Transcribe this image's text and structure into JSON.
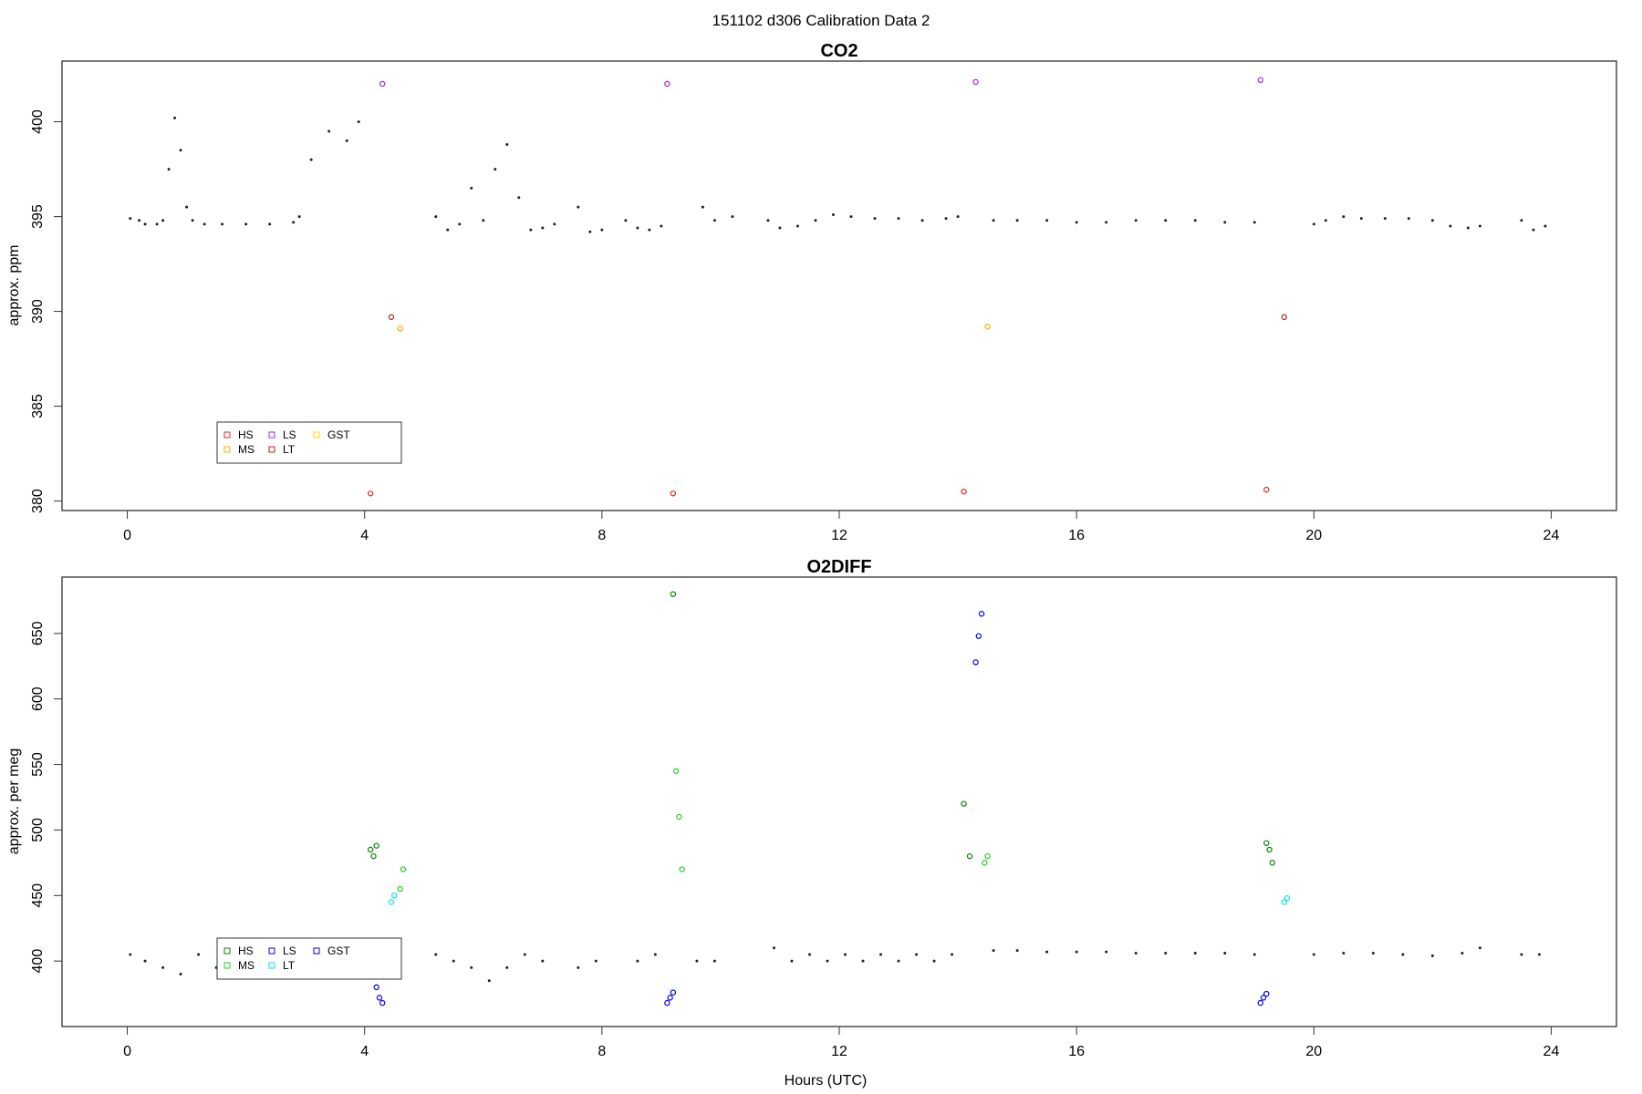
{
  "figure": {
    "suptitle": "151102   d306   Calibration Data 2",
    "xlabel": "Hours (UTC)"
  },
  "chart_data": [
    {
      "type": "scatter",
      "title": "CO2",
      "xlabel": "",
      "ylabel": "approx. ppm",
      "xlim": [
        -1.1,
        25.1
      ],
      "ylim": [
        379.5,
        403.2
      ],
      "xticks": [
        0,
        4,
        8,
        12,
        16,
        20,
        24
      ],
      "yticks": [
        380,
        385,
        390,
        395,
        400
      ],
      "grid": false,
      "legend_position": "bottom-left",
      "legend": [
        {
          "label": "HS",
          "color": "#ee2222"
        },
        {
          "label": "MS",
          "color": "#ffa500"
        },
        {
          "label": "LS",
          "color": "#a020f0"
        },
        {
          "label": "LT",
          "color": "#b22222"
        },
        {
          "label": "GST",
          "color": "#ffd700"
        }
      ],
      "ambient_baseline": [
        [
          0.05,
          394.9
        ],
        [
          0.2,
          394.8
        ],
        [
          0.3,
          394.6
        ],
        [
          0.5,
          394.6
        ],
        [
          0.6,
          394.8
        ],
        [
          0.7,
          397.5
        ],
        [
          0.8,
          400.2
        ],
        [
          0.9,
          398.5
        ],
        [
          1.0,
          395.5
        ],
        [
          1.1,
          394.8
        ],
        [
          1.3,
          394.6
        ],
        [
          1.6,
          394.6
        ],
        [
          2.0,
          394.6
        ],
        [
          2.4,
          394.6
        ],
        [
          2.8,
          394.7
        ],
        [
          2.9,
          395.0
        ],
        [
          3.1,
          398.0
        ],
        [
          3.4,
          399.5
        ],
        [
          3.7,
          399.0
        ],
        [
          3.9,
          400.0
        ],
        [
          5.2,
          395.0
        ],
        [
          5.4,
          394.3
        ],
        [
          5.6,
          394.6
        ],
        [
          5.8,
          396.5
        ],
        [
          6.0,
          394.8
        ],
        [
          6.2,
          397.5
        ],
        [
          6.4,
          398.8
        ],
        [
          6.6,
          396.0
        ],
        [
          6.8,
          394.3
        ],
        [
          7.0,
          394.4
        ],
        [
          7.2,
          394.6
        ],
        [
          7.6,
          395.5
        ],
        [
          7.8,
          394.2
        ],
        [
          8.0,
          394.3
        ],
        [
          8.4,
          394.8
        ],
        [
          8.6,
          394.4
        ],
        [
          8.8,
          394.3
        ],
        [
          9.0,
          394.5
        ],
        [
          9.7,
          395.5
        ],
        [
          9.9,
          394.8
        ],
        [
          10.2,
          395.0
        ],
        [
          10.8,
          394.8
        ],
        [
          11.0,
          394.4
        ],
        [
          11.3,
          394.5
        ],
        [
          11.6,
          394.8
        ],
        [
          11.9,
          395.1
        ],
        [
          12.2,
          395.0
        ],
        [
          12.6,
          394.9
        ],
        [
          13.0,
          394.9
        ],
        [
          13.4,
          394.8
        ],
        [
          13.8,
          394.9
        ],
        [
          14.0,
          395.0
        ],
        [
          14.6,
          394.8
        ],
        [
          15.0,
          394.8
        ],
        [
          15.5,
          394.8
        ],
        [
          16.0,
          394.7
        ],
        [
          16.5,
          394.7
        ],
        [
          17.0,
          394.8
        ],
        [
          17.5,
          394.8
        ],
        [
          18.0,
          394.8
        ],
        [
          18.5,
          394.7
        ],
        [
          19.0,
          394.7
        ],
        [
          20.0,
          394.6
        ],
        [
          20.2,
          394.8
        ],
        [
          20.5,
          395.0
        ],
        [
          20.8,
          394.9
        ],
        [
          21.2,
          394.9
        ],
        [
          21.6,
          394.9
        ],
        [
          22.0,
          394.8
        ],
        [
          22.3,
          394.5
        ],
        [
          22.6,
          394.4
        ],
        [
          22.8,
          394.5
        ],
        [
          23.5,
          394.8
        ],
        [
          23.7,
          394.3
        ],
        [
          23.9,
          394.5
        ]
      ],
      "calibration_points": {
        "HS": {
          "x": [
            4.1,
            9.2,
            14.1,
            19.2
          ],
          "y": [
            380.4,
            380.4,
            380.5,
            380.6
          ]
        },
        "LT": {
          "x": [
            4.45,
            19.5
          ],
          "y": [
            389.7,
            389.7
          ]
        },
        "MS": {
          "x": [
            4.6,
            14.5
          ],
          "y": [
            389.1,
            389.2
          ]
        },
        "LS": {
          "x": [
            4.3,
            9.1,
            14.3,
            19.1
          ],
          "y": [
            402.0,
            402.0,
            402.1,
            402.2
          ]
        }
      }
    },
    {
      "type": "scatter",
      "title": "O2DIFF",
      "xlabel": "Hours (UTC)",
      "ylabel": "approx. per meg",
      "xlim": [
        -1.1,
        25.1
      ],
      "ylim": [
        350,
        693
      ],
      "xticks": [
        0,
        4,
        8,
        12,
        16,
        20,
        24
      ],
      "yticks": [
        400,
        450,
        500,
        550,
        600,
        650
      ],
      "grid": false,
      "legend_position": "bottom-left",
      "legend": [
        {
          "label": "HS",
          "color": "#008000"
        },
        {
          "label": "MS",
          "color": "#22cc22"
        },
        {
          "label": "LS",
          "color": "#0000ee"
        },
        {
          "label": "LT",
          "color": "#00e5ee"
        },
        {
          "label": "GST",
          "color": "#0000cd"
        }
      ],
      "ambient_baseline": [
        [
          0.05,
          405
        ],
        [
          0.3,
          400
        ],
        [
          0.6,
          395
        ],
        [
          0.9,
          390
        ],
        [
          1.2,
          405
        ],
        [
          1.5,
          395
        ],
        [
          1.8,
          400
        ],
        [
          2.1,
          405
        ],
        [
          2.4,
          395
        ],
        [
          2.7,
          400
        ],
        [
          3.0,
          395
        ],
        [
          5.2,
          405
        ],
        [
          5.5,
          400
        ],
        [
          5.8,
          395
        ],
        [
          6.1,
          385
        ],
        [
          6.4,
          395
        ],
        [
          6.7,
          405
        ],
        [
          7.0,
          400
        ],
        [
          7.6,
          395
        ],
        [
          7.9,
          400
        ],
        [
          8.6,
          400
        ],
        [
          8.9,
          405
        ],
        [
          9.6,
          400
        ],
        [
          9.9,
          400
        ],
        [
          10.9,
          410
        ],
        [
          11.2,
          400
        ],
        [
          11.5,
          405
        ],
        [
          11.8,
          400
        ],
        [
          12.1,
          405
        ],
        [
          12.4,
          400
        ],
        [
          12.7,
          405
        ],
        [
          13.0,
          400
        ],
        [
          13.3,
          405
        ],
        [
          13.6,
          400
        ],
        [
          13.9,
          405
        ],
        [
          14.6,
          408
        ],
        [
          15.0,
          408
        ],
        [
          15.5,
          407
        ],
        [
          16.0,
          407
        ],
        [
          16.5,
          407
        ],
        [
          17.0,
          406
        ],
        [
          17.5,
          406
        ],
        [
          18.0,
          406
        ],
        [
          18.5,
          406
        ],
        [
          19.0,
          405
        ],
        [
          20.0,
          405
        ],
        [
          20.5,
          406
        ],
        [
          21.0,
          406
        ],
        [
          21.5,
          405
        ],
        [
          22.0,
          404
        ],
        [
          22.5,
          406
        ],
        [
          22.8,
          410
        ],
        [
          23.5,
          405
        ],
        [
          23.8,
          405
        ]
      ],
      "calibration_points": {
        "HS": {
          "x": [
            4.1,
            4.15,
            4.2,
            9.2,
            14.1,
            14.2,
            19.2,
            19.25,
            19.3
          ],
          "y": [
            485,
            480,
            488,
            680,
            520,
            480,
            490,
            485,
            475
          ]
        },
        "MS": {
          "x": [
            4.6,
            4.65,
            9.25,
            9.3,
            9.35,
            14.45,
            14.5
          ],
          "y": [
            455,
            470,
            545,
            510,
            470,
            475,
            480
          ]
        },
        "LT": {
          "x": [
            4.45,
            4.5,
            19.5,
            19.55
          ],
          "y": [
            445,
            450,
            445,
            448
          ]
        },
        "LS": {
          "x": [
            4.2,
            4.25,
            4.3,
            9.1,
            9.15,
            9.2,
            14.3,
            14.35,
            14.4,
            19.1,
            19.15,
            19.2
          ],
          "y": [
            380,
            372,
            368,
            368,
            372,
            376,
            628,
            648,
            665,
            368,
            372,
            375
          ]
        }
      }
    }
  ]
}
